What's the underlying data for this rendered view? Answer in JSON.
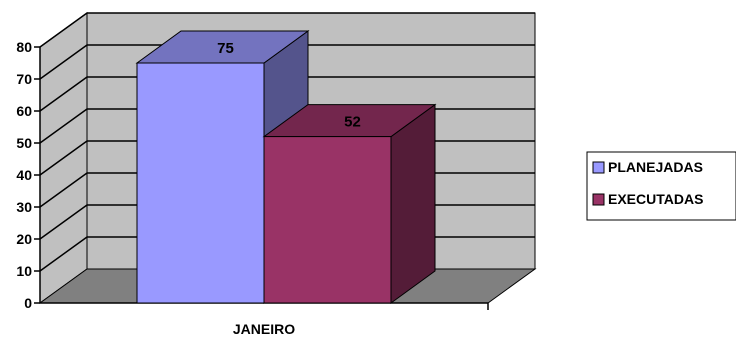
{
  "chart_data": {
    "type": "bar",
    "style": "3d-clustered-column",
    "categories": [
      "JANEIRO"
    ],
    "series": [
      {
        "name": "PLANEJADAS",
        "values": [
          75
        ],
        "color": "#9999FF"
      },
      {
        "name": "EXECUTADAS",
        "values": [
          52
        ],
        "color": "#993366"
      }
    ],
    "ylim": [
      0,
      80
    ],
    "yticks": [
      0,
      10,
      20,
      30,
      40,
      50,
      60,
      70,
      80
    ],
    "grid": true,
    "data_labels": true,
    "legend_position": "right",
    "wall_color": "#C0C0C0",
    "floor_color": "#808080",
    "title": "",
    "xlabel": "",
    "ylabel": ""
  }
}
